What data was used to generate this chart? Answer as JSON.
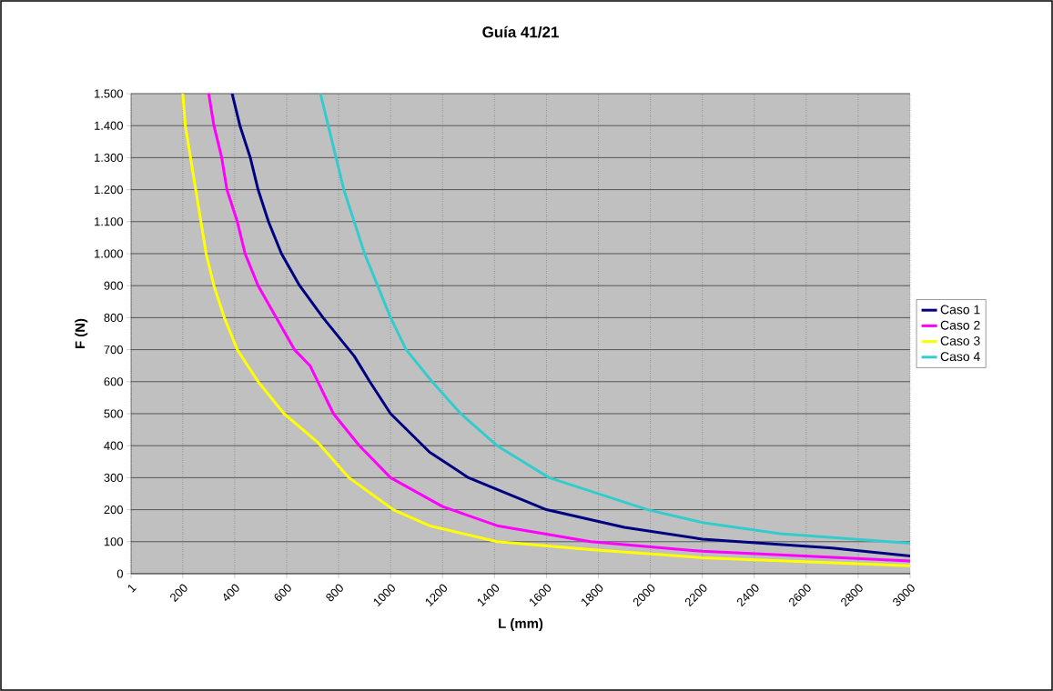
{
  "chart_data": {
    "type": "line",
    "title": "Guía 41/21",
    "xlabel": "L (mm)",
    "ylabel": "F (N)",
    "xlim": [
      1,
      3000
    ],
    "xticks": [
      1,
      200,
      400,
      600,
      800,
      1000,
      1200,
      1400,
      1600,
      1800,
      2000,
      2200,
      2400,
      2600,
      2800,
      3000
    ],
    "ylim": [
      0,
      1500
    ],
    "yticks": [
      0,
      100,
      200,
      300,
      400,
      500,
      600,
      700,
      800,
      900,
      {
        "value": 1000,
        "label": "1.000"
      },
      {
        "value": 1100,
        "label": "1.100"
      },
      {
        "value": 1200,
        "label": "1.200"
      },
      {
        "value": 1300,
        "label": "1.300"
      },
      {
        "value": 1400,
        "label": "1.400"
      },
      {
        "value": 1500,
        "label": "1.500"
      }
    ],
    "grid": true,
    "legend": "right",
    "marker": "none",
    "line_style": "solid",
    "series": [
      {
        "name": "Caso 1",
        "color": "#000080",
        "x": [
          390,
          420,
          460,
          490,
          530,
          580,
          650,
          740,
          840,
          860,
          920,
          1000,
          1150,
          1300,
          1600,
          1900,
          2200,
          2700,
          3000
        ],
        "values": [
          1500,
          1400,
          1300,
          1200,
          1100,
          1000,
          900,
          800,
          700,
          680,
          600,
          500,
          380,
          300,
          200,
          145,
          108,
          80,
          55
        ]
      },
      {
        "name": "Caso 2",
        "color": "#ff00ff",
        "x": [
          300,
          320,
          350,
          370,
          410,
          440,
          490,
          560,
          630,
          690,
          720,
          780,
          880,
          1000,
          1200,
          1410,
          1770,
          2200,
          3000
        ],
        "values": [
          1500,
          1400,
          1300,
          1200,
          1100,
          1000,
          900,
          800,
          700,
          650,
          600,
          500,
          400,
          300,
          210,
          150,
          100,
          70,
          40
        ]
      },
      {
        "name": "Caso 3",
        "color": "#ffff00",
        "x": [
          200,
          210,
          230,
          250,
          270,
          290,
          320,
          360,
          410,
          490,
          590,
          720,
          840,
          1010,
          1150,
          1410,
          1770,
          2200,
          3000
        ],
        "values": [
          1500,
          1400,
          1300,
          1200,
          1100,
          1000,
          900,
          800,
          700,
          600,
          500,
          410,
          300,
          200,
          150,
          100,
          75,
          50,
          25
        ]
      },
      {
        "name": "Caso 4",
        "color": "#33cccc",
        "x": [
          730,
          760,
          790,
          820,
          860,
          900,
          950,
          1000,
          1060,
          1160,
          1270,
          1410,
          1610,
          1990,
          2200,
          2500,
          3000
        ],
        "values": [
          1500,
          1400,
          1300,
          1200,
          1100,
          1000,
          900,
          800,
          700,
          600,
          500,
          400,
          300,
          200,
          160,
          125,
          95
        ]
      }
    ]
  }
}
